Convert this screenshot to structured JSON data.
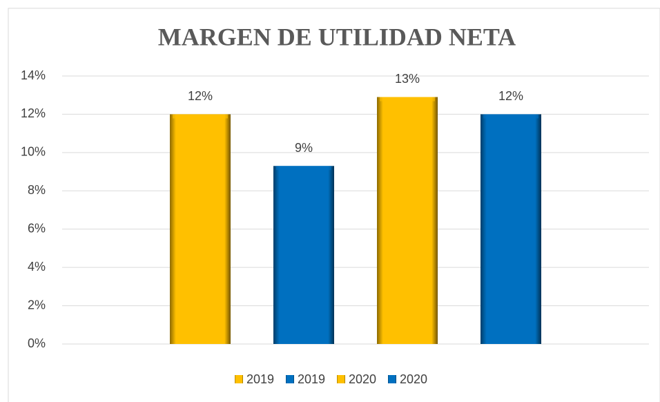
{
  "chart_data": {
    "type": "bar",
    "title": "MARGEN DE UTILIDAD NETA",
    "categories": [
      null
    ],
    "series": [
      {
        "name": "2019",
        "color": "#ffc000",
        "values": [
          12.0
        ],
        "value_labels": [
          "12%"
        ]
      },
      {
        "name": "2019",
        "color": "#0070c0",
        "values": [
          9.3
        ],
        "value_labels": [
          "9%"
        ]
      },
      {
        "name": "2020",
        "color": "#ffc000",
        "values": [
          12.9
        ],
        "value_labels": [
          "13%"
        ]
      },
      {
        "name": "2020",
        "color": "#0070c0",
        "values": [
          12.0
        ],
        "value_labels": [
          "12%"
        ]
      }
    ],
    "ylim": [
      0,
      14
    ],
    "yticks": [
      {
        "value": 0,
        "label": "0%"
      },
      {
        "value": 2,
        "label": "2%"
      },
      {
        "value": 4,
        "label": "4%"
      },
      {
        "value": 6,
        "label": "6%"
      },
      {
        "value": 8,
        "label": "8%"
      },
      {
        "value": 10,
        "label": "10%"
      },
      {
        "value": 12,
        "label": "12%"
      },
      {
        "value": 14,
        "label": "14%"
      }
    ],
    "grid": true,
    "legend": "bottom"
  }
}
